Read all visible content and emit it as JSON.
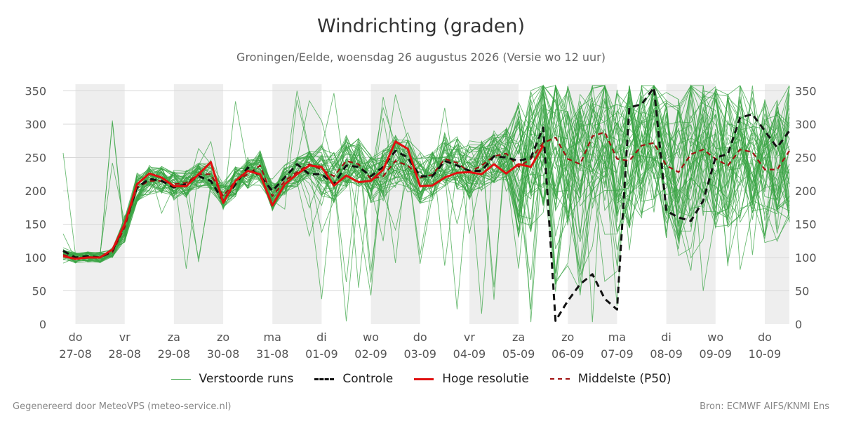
{
  "header": {
    "title": "Windrichting (graden)",
    "subtitle": "Groningen/Eelde, woensdag 26 augustus 2026 (Versie wo 12 uur)"
  },
  "footer": {
    "left": "Gegenereerd door MeteoVPS (meteo-service.nl)",
    "right": "Bron: ECMWF AIFS/KNMI Ens"
  },
  "legend": {
    "items": [
      {
        "label": "Verstoorde runs",
        "color": "#3aa444",
        "style": "thin"
      },
      {
        "label": "Controle",
        "color": "#111111",
        "style": "dashed"
      },
      {
        "label": "Hoge resolutie",
        "color": "#e01010",
        "style": "solid"
      },
      {
        "label": "Middelste (P50)",
        "color": "#a01010",
        "style": "dashed"
      }
    ]
  },
  "chart_data": {
    "type": "line",
    "title": "Windrichting (graden)",
    "ylim": [
      0,
      360
    ],
    "yticks": [
      0,
      50,
      100,
      150,
      200,
      250,
      300,
      350
    ],
    "xlim": [
      -0.25,
      14.5
    ],
    "grid": true,
    "legend_position": "bottom",
    "day_labels": [
      {
        "day": "do",
        "date": "27-08"
      },
      {
        "day": "vr",
        "date": "28-08"
      },
      {
        "day": "za",
        "date": "29-08"
      },
      {
        "day": "zo",
        "date": "30-08"
      },
      {
        "day": "ma",
        "date": "31-08"
      },
      {
        "day": "di",
        "date": "01-09"
      },
      {
        "day": "wo",
        "date": "02-09"
      },
      {
        "day": "do",
        "date": "03-09"
      },
      {
        "day": "vr",
        "date": "04-09"
      },
      {
        "day": "za",
        "date": "05-09"
      },
      {
        "day": "zo",
        "date": "06-09"
      },
      {
        "day": "ma",
        "date": "07-09"
      },
      {
        "day": "di",
        "date": "08-09"
      },
      {
        "day": "wo",
        "date": "09-09"
      },
      {
        "day": "do",
        "date": "10-09"
      }
    ],
    "shaded_days": [
      0,
      2,
      4,
      6,
      8,
      10,
      12,
      14
    ],
    "series": [
      {
        "name": "Hoge resolutie",
        "color": "#e01010",
        "x": [
          -0.25,
          0,
          0.25,
          0.5,
          0.75,
          1,
          1.25,
          1.5,
          1.75,
          2,
          2.25,
          2.5,
          2.75,
          3,
          3.25,
          3.5,
          3.75,
          4,
          4.25,
          4.5,
          4.75,
          5,
          5.25,
          5.5,
          5.75,
          6,
          6.25,
          6.5,
          6.75,
          7,
          7.25,
          7.5,
          7.75,
          8,
          8.25,
          8.5,
          8.75,
          9,
          9.25,
          9.5
        ],
        "values": [
          102,
          98,
          100,
          100,
          112,
          150,
          210,
          226,
          220,
          207,
          207,
          225,
          243,
          182,
          215,
          230,
          225,
          178,
          210,
          225,
          238,
          236,
          208,
          223,
          213,
          215,
          232,
          274,
          263,
          207,
          208,
          220,
          227,
          228,
          225,
          240,
          226,
          240,
          236,
          268
        ]
      },
      {
        "name": "Controle",
        "color": "#111111",
        "x": [
          -0.25,
          0,
          0.25,
          0.5,
          0.75,
          1,
          1.25,
          1.5,
          1.75,
          2,
          2.25,
          2.5,
          2.75,
          3,
          3.25,
          3.5,
          3.75,
          4,
          4.25,
          4.5,
          4.75,
          5,
          5.25,
          5.5,
          5.75,
          6,
          6.25,
          6.5,
          6.75,
          7,
          7.25,
          7.5,
          7.75,
          8,
          8.25,
          8.5,
          8.75,
          9,
          9.25,
          9.5,
          9.75,
          10,
          10.25,
          10.5,
          10.75,
          11,
          11.25,
          11.5,
          11.75,
          12,
          12.25,
          12.5,
          12.75,
          13,
          13.25,
          13.5,
          13.75,
          14,
          14.25,
          14.5
        ],
        "values": [
          110,
          100,
          102,
          100,
          110,
          150,
          205,
          218,
          215,
          205,
          210,
          222,
          215,
          185,
          210,
          235,
          222,
          200,
          220,
          240,
          225,
          225,
          210,
          238,
          236,
          222,
          236,
          260,
          250,
          222,
          222,
          245,
          238,
          230,
          230,
          252,
          250,
          245,
          250,
          295,
          5,
          35,
          60,
          75,
          38,
          22,
          325,
          330,
          355,
          170,
          160,
          155,
          185,
          250,
          255,
          310,
          315,
          290,
          265,
          290
        ]
      },
      {
        "name": "Middelste (P50)",
        "color": "#a01010",
        "x": [
          -0.25,
          0,
          0.25,
          0.5,
          0.75,
          1,
          1.25,
          1.5,
          1.75,
          2,
          2.25,
          2.5,
          2.75,
          3,
          3.25,
          3.5,
          3.75,
          4,
          4.25,
          4.5,
          4.75,
          5,
          5.25,
          5.5,
          5.75,
          6,
          6.25,
          6.5,
          6.75,
          7,
          7.25,
          7.5,
          7.75,
          8,
          8.25,
          8.5,
          8.75,
          9,
          9.25,
          9.5,
          9.75,
          10,
          10.25,
          10.5,
          10.75,
          11,
          11.25,
          11.5,
          11.75,
          12,
          12.25,
          12.5,
          12.75,
          13,
          13.25,
          13.5,
          13.75,
          14,
          14.25,
          14.5
        ],
        "values": [
          104,
          99,
          101,
          100,
          108,
          145,
          205,
          215,
          215,
          210,
          212,
          225,
          225,
          192,
          215,
          225,
          238,
          192,
          215,
          228,
          240,
          232,
          222,
          245,
          240,
          218,
          222,
          245,
          238,
          220,
          224,
          248,
          242,
          228,
          238,
          252,
          256,
          236,
          248,
          272,
          280,
          248,
          240,
          282,
          288,
          248,
          245,
          268,
          272,
          238,
          228,
          255,
          262,
          248,
          238,
          262,
          258,
          232,
          232,
          260
        ]
      }
    ],
    "ensemble": {
      "name": "Verstoorde runs",
      "color": "#3aa444",
      "members": 50
    }
  }
}
